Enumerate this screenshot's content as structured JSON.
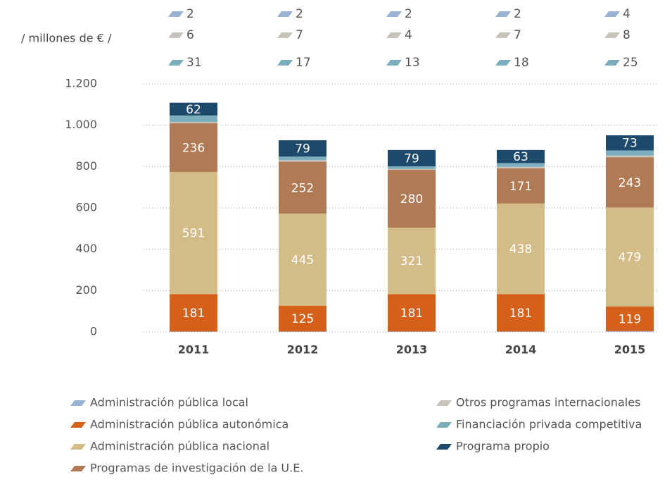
{
  "chart_data": {
    "type": "stacked_bar",
    "unit": "/  millones de €  /",
    "categories": [
      "2011",
      "2012",
      "2013",
      "2014",
      "2015"
    ],
    "series": [
      {
        "name": "Administración pública local",
        "color": "#9ab3d5",
        "values": [
          2,
          2,
          2,
          2,
          4
        ],
        "label_position": "top"
      },
      {
        "name": "Administración pública autonómica",
        "color": "#d4601a",
        "values": [
          181,
          125,
          181,
          181,
          119
        ],
        "label_position": "inside"
      },
      {
        "name": "Administración pública nacional",
        "color": "#d4bc88",
        "values": [
          591,
          445,
          321,
          438,
          479
        ],
        "label_position": "inside"
      },
      {
        "name": "Programas de investigación de la U.E.",
        "color": "#b07a55",
        "values": [
          236,
          252,
          280,
          171,
          243
        ],
        "label_position": "inside"
      },
      {
        "name": "Otros programas internacionales",
        "color": "#c8c4bc",
        "values": [
          6,
          7,
          4,
          7,
          8
        ],
        "label_position": "top"
      },
      {
        "name": "Financiación privada competitiva",
        "color": "#7aaebc",
        "values": [
          31,
          17,
          13,
          18,
          25
        ],
        "label_position": "top"
      },
      {
        "name": "Programa propio",
        "color": "#1d4a6b",
        "values": [
          62,
          79,
          79,
          63,
          73
        ],
        "label_position": "inside"
      }
    ],
    "ylim": [
      0,
      1200
    ],
    "yticks": [
      0,
      200,
      400,
      600,
      800,
      {
        "value": 1000,
        "label": "1.000"
      },
      {
        "value": 1200,
        "label": "1.200"
      }
    ],
    "grid": true
  }
}
